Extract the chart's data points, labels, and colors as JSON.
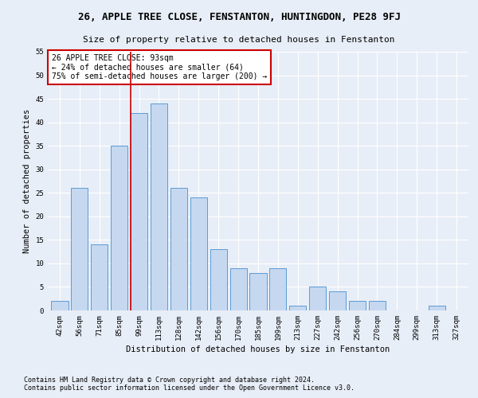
{
  "title": "26, APPLE TREE CLOSE, FENSTANTON, HUNTINGDON, PE28 9FJ",
  "subtitle": "Size of property relative to detached houses in Fenstanton",
  "xlabel": "Distribution of detached houses by size in Fenstanton",
  "ylabel": "Number of detached properties",
  "categories": [
    "42sqm",
    "56sqm",
    "71sqm",
    "85sqm",
    "99sqm",
    "113sqm",
    "128sqm",
    "142sqm",
    "156sqm",
    "170sqm",
    "185sqm",
    "199sqm",
    "213sqm",
    "227sqm",
    "242sqm",
    "256sqm",
    "270sqm",
    "284sqm",
    "299sqm",
    "313sqm",
    "327sqm"
  ],
  "values": [
    2,
    26,
    14,
    35,
    42,
    44,
    26,
    24,
    13,
    9,
    8,
    9,
    1,
    5,
    4,
    2,
    2,
    0,
    0,
    1,
    0
  ],
  "bar_color": "#c5d8f0",
  "bar_edge_color": "#5b9bd5",
  "annotation_text": "26 APPLE TREE CLOSE: 93sqm\n← 24% of detached houses are smaller (64)\n75% of semi-detached houses are larger (200) →",
  "annotation_box_color": "#ffffff",
  "annotation_box_edge": "#cc0000",
  "vline_color": "#cc0000",
  "ylim": [
    0,
    55
  ],
  "yticks": [
    0,
    5,
    10,
    15,
    20,
    25,
    30,
    35,
    40,
    45,
    50,
    55
  ],
  "footer1": "Contains HM Land Registry data © Crown copyright and database right 2024.",
  "footer2": "Contains public sector information licensed under the Open Government Licence v3.0.",
  "bg_color": "#e8eef7",
  "plot_bg_color": "#e8eef7",
  "grid_color": "#ffffff",
  "title_fontsize": 9,
  "subtitle_fontsize": 8,
  "axis_label_fontsize": 7.5,
  "tick_fontsize": 6.5,
  "annotation_fontsize": 7,
  "footer_fontsize": 6
}
